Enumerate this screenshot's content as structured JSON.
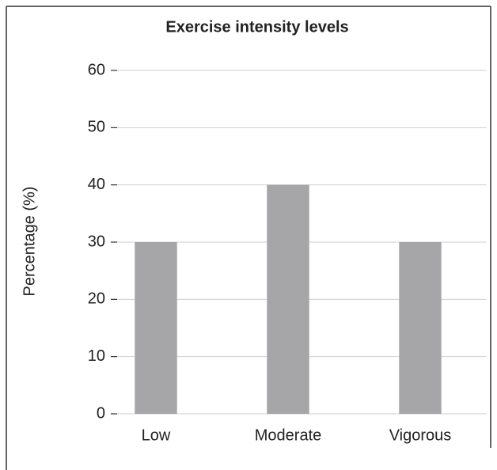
{
  "chart_data": {
    "type": "bar",
    "title": "Exercise intensity levels",
    "y_label": "Percentage (%)",
    "categories": [
      "Low",
      "Moderate",
      "Vigorous"
    ],
    "values": [
      30,
      40,
      30
    ],
    "color": "#a6a6a8",
    "ylim": [
      0,
      60
    ],
    "yticks": [
      0,
      10,
      20,
      30,
      40,
      50,
      60
    ],
    "grid": true
  }
}
